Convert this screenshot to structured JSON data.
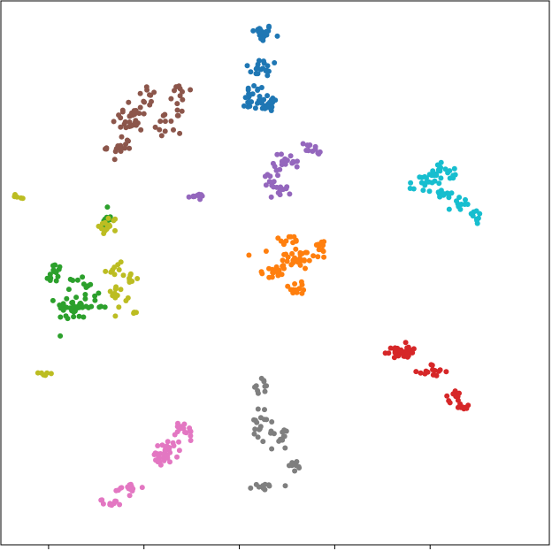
{
  "chart_data": {
    "type": "scatter",
    "title": "",
    "xlabel": "",
    "ylabel": "",
    "xlim": [
      -55,
      60
    ],
    "ylim": [
      -50,
      60
    ],
    "x_ticks": [
      -45,
      -25,
      -5,
      15,
      35
    ],
    "x_tick_labels": [
      "",
      "",
      "",
      "",
      ""
    ],
    "grid": false,
    "legend": "none",
    "series": [
      {
        "color": "#1f77b4",
        "centers": [
          [
            -0.4,
            53.5
          ],
          [
            0.2,
            46.5
          ],
          [
            -1.8,
            40.5
          ],
          [
            1.5,
            39.5
          ],
          [
            -1.0,
            39.0
          ]
        ],
        "spread": [
          [
            2.2,
            1.6
          ],
          [
            3.5,
            1.8
          ],
          [
            1.8,
            2.5
          ],
          [
            1.5,
            1.8
          ],
          [
            3.0,
            1.2
          ]
        ],
        "counts": [
          22,
          18,
          16,
          12,
          14
        ]
      },
      {
        "color": "#ff7f0e",
        "centers": [
          [
            7.0,
            8.0
          ],
          [
            2.0,
            5.0
          ],
          [
            12.0,
            10.5
          ],
          [
            7.5,
            2.0
          ],
          [
            5.0,
            11.5
          ]
        ],
        "spread": [
          [
            4.5,
            2.2
          ],
          [
            2.8,
            2.0
          ],
          [
            1.5,
            1.2
          ],
          [
            2.0,
            1.6
          ],
          [
            2.5,
            1.0
          ]
        ],
        "counts": [
          35,
          16,
          12,
          12,
          10
        ]
      },
      {
        "color": "#2ca02c",
        "centers": [
          [
            -40.0,
            -2.0
          ],
          [
            -44.0,
            4.5
          ],
          [
            -36.0,
            -1.5
          ],
          [
            -33.0,
            16.0
          ],
          [
            -38.0,
            2.5
          ]
        ],
        "spread": [
          [
            3.0,
            2.5
          ],
          [
            1.5,
            2.5
          ],
          [
            3.0,
            1.8
          ],
          [
            1.0,
            1.8
          ],
          [
            2.0,
            1.8
          ]
        ],
        "counts": [
          30,
          16,
          14,
          12,
          10
        ]
      },
      {
        "color": "#d62728",
        "centers": [
          [
            28.0,
            -11.0
          ],
          [
            31.0,
            -11.0
          ],
          [
            35.5,
            -15.0
          ],
          [
            40.0,
            -20.0
          ],
          [
            42.0,
            -22.0
          ]
        ],
        "spread": [
          [
            2.5,
            1.5
          ],
          [
            2.0,
            1.2
          ],
          [
            2.5,
            1.4
          ],
          [
            2.0,
            1.0
          ],
          [
            1.5,
            0.6
          ]
        ],
        "counts": [
          24,
          12,
          14,
          10,
          12
        ]
      },
      {
        "color": "#9467bd",
        "centers": [
          [
            5.0,
            27.5
          ],
          [
            1.5,
            24.0
          ],
          [
            10.0,
            30.0
          ],
          [
            3.5,
            21.5
          ],
          [
            -14.0,
            20.5
          ]
        ],
        "spread": [
          [
            2.5,
            1.5
          ],
          [
            1.2,
            1.6
          ],
          [
            2.0,
            1.4
          ],
          [
            2.0,
            1.2
          ],
          [
            1.5,
            0.4
          ]
        ],
        "counts": [
          20,
          10,
          12,
          10,
          13
        ]
      },
      {
        "color": "#8c564b",
        "centers": [
          [
            -28.0,
            36.0
          ],
          [
            -30.0,
            30.5
          ],
          [
            -20.0,
            35.5
          ],
          [
            -17.0,
            41.0
          ],
          [
            -24.0,
            40.5
          ]
        ],
        "spread": [
          [
            3.5,
            2.5
          ],
          [
            2.5,
            2.0
          ],
          [
            2.5,
            2.0
          ],
          [
            1.8,
            2.0
          ],
          [
            2.0,
            1.8
          ]
        ],
        "counts": [
          30,
          16,
          14,
          10,
          10
        ]
      },
      {
        "color": "#e377c2",
        "centers": [
          [
            -21.0,
            -32.0
          ],
          [
            -16.5,
            -27.0
          ],
          [
            -28.0,
            -38.5
          ],
          [
            -32.0,
            -41.5
          ],
          [
            -18.5,
            -30.0
          ]
        ],
        "spread": [
          [
            3.0,
            2.0
          ],
          [
            2.5,
            2.0
          ],
          [
            2.5,
            1.0
          ],
          [
            2.0,
            0.6
          ],
          [
            2.0,
            1.5
          ]
        ],
        "counts": [
          26,
          16,
          14,
          12,
          10
        ]
      },
      {
        "color": "#7f7f7f",
        "centers": [
          [
            -0.5,
            -26.0
          ],
          [
            3.5,
            -28.0
          ],
          [
            -0.5,
            -18.0
          ],
          [
            6.5,
            -34.0
          ],
          [
            0.5,
            -38.0
          ]
        ],
        "spread": [
          [
            2.0,
            3.0
          ],
          [
            1.5,
            2.5
          ],
          [
            1.5,
            1.5
          ],
          [
            1.2,
            1.0
          ],
          [
            2.5,
            1.0
          ]
        ],
        "counts": [
          18,
          12,
          10,
          8,
          10
        ]
      },
      {
        "color": "#bcbd22",
        "centers": [
          [
            -32.5,
            14.5
          ],
          [
            -30.5,
            0.5
          ],
          [
            -31.0,
            6.0
          ],
          [
            -28.0,
            4.0
          ],
          [
            -45.5,
            -15.5
          ],
          [
            -51.0,
            20.5
          ],
          [
            -27.0,
            -3.0
          ]
        ],
        "spread": [
          [
            1.8,
            1.8
          ],
          [
            1.8,
            2.0
          ],
          [
            1.5,
            1.5
          ],
          [
            1.0,
            1.5
          ],
          [
            1.5,
            0.3
          ],
          [
            1.0,
            0.4
          ],
          [
            1.0,
            0.4
          ]
        ],
        "counts": [
          16,
          12,
          8,
          8,
          6,
          5,
          4
        ]
      },
      {
        "color": "#17becf",
        "centers": [
          [
            33.5,
            23.0
          ],
          [
            37.5,
            20.5
          ],
          [
            41.5,
            19.0
          ],
          [
            44.5,
            16.5
          ],
          [
            36.5,
            25.5
          ],
          [
            39.5,
            25.5
          ]
        ],
        "spread": [
          [
            2.5,
            2.0
          ],
          [
            2.0,
            1.6
          ],
          [
            1.8,
            1.6
          ],
          [
            1.5,
            1.8
          ],
          [
            2.0,
            1.5
          ],
          [
            1.8,
            1.5
          ]
        ],
        "counts": [
          18,
          16,
          10,
          10,
          10,
          8
        ]
      }
    ]
  }
}
